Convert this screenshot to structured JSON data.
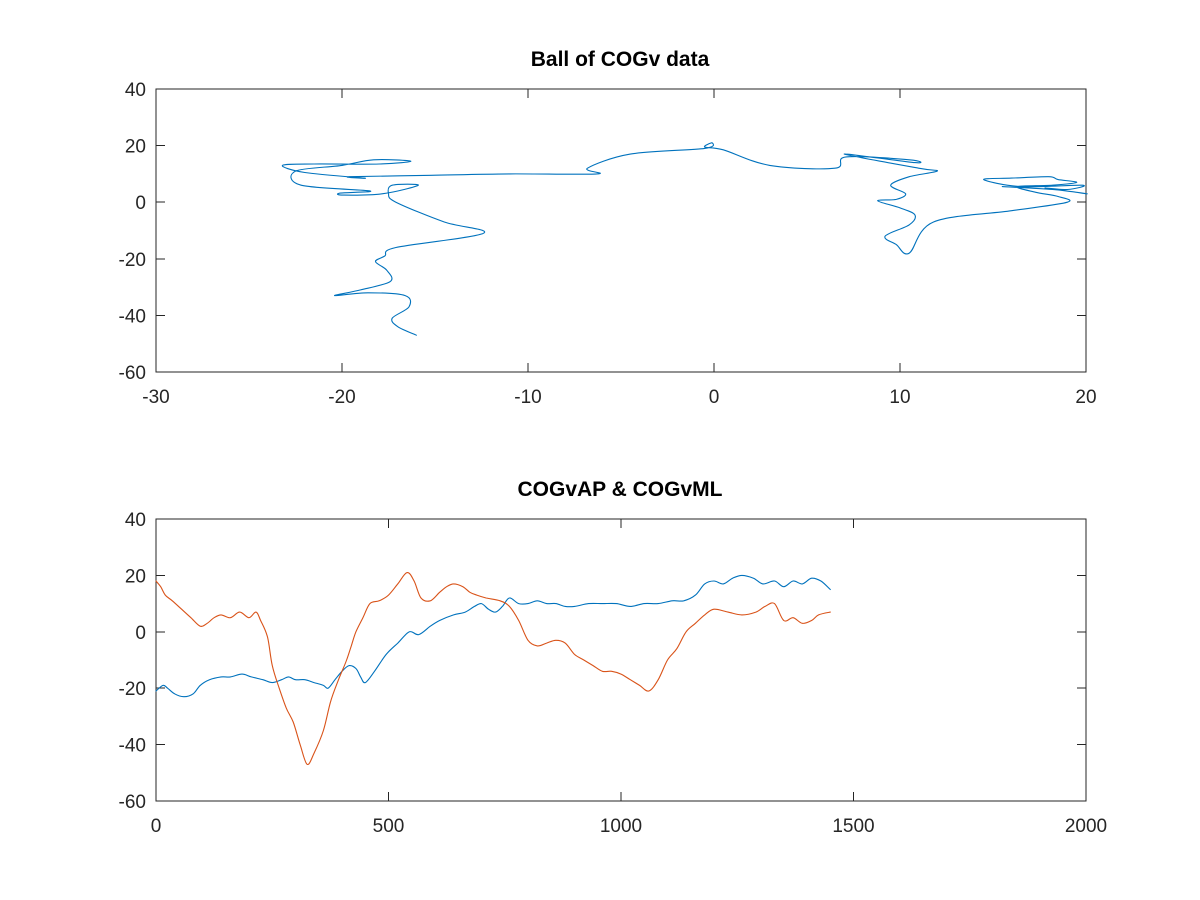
{
  "chart_data": [
    {
      "type": "line",
      "title": "Ball of COGv data",
      "xlabel": "",
      "ylabel": "",
      "xlim": [
        -30,
        20
      ],
      "ylim": [
        -60,
        40
      ],
      "x_ticks": [
        -30,
        -20,
        -10,
        0,
        10,
        20
      ],
      "y_ticks": [
        -60,
        -40,
        -20,
        0,
        20,
        40
      ],
      "x_tick_labels": [
        "-30",
        "-20",
        "-10",
        "0",
        "10",
        "20"
      ],
      "y_tick_labels": [
        "-60",
        "-40",
        "-20",
        "0",
        "20",
        "40"
      ],
      "grid": false,
      "series": [
        {
          "color": "#0072bd",
          "x": [
            -16.0,
            -17.0,
            -17.3,
            -16.4,
            -16.6,
            -18.6,
            -20.4,
            -19.0,
            -17.4,
            -17.6,
            -18.2,
            -17.7,
            -17.1,
            -12.4,
            -14.5,
            -17.1,
            -17.5,
            -17.3,
            -15.9,
            -17.8,
            -19.9,
            -20.1,
            -18.5,
            -22.2,
            -22.5,
            -20.0,
            -18.3,
            -16.3,
            -18.0,
            -21.5,
            -23.2,
            -22.0,
            -18.8,
            -19.6,
            -15.2,
            -11.0,
            -6.3,
            -6.8,
            -4.5,
            -0.5,
            -0.1,
            -0.5,
            0.5,
            3.0,
            6.5,
            7.1,
            10.5,
            10.8,
            7.0,
            11.0,
            12.0,
            10.5,
            9.5,
            10.3,
            9.8,
            8.8,
            10.0,
            10.8,
            10.5,
            9.2,
            9.8,
            10.5,
            11.8,
            16.0,
            19.0,
            18.5,
            17.3,
            16.3,
            18.2,
            19.5,
            18.5,
            18.0,
            16.0,
            14.5,
            16.5,
            19.8,
            19.0,
            17.8,
            19.5,
            20.0,
            18.2,
            15.5
          ],
          "y": [
            -47.0,
            -44.0,
            -41.0,
            -37.0,
            -33.0,
            -32.0,
            -33.0,
            -31.0,
            -28.0,
            -24.0,
            -21.0,
            -19.0,
            -16.0,
            -11.0,
            -7.0,
            0.0,
            3.0,
            6.0,
            6.0,
            3.0,
            2.5,
            3.2,
            4.0,
            6.0,
            11.0,
            13.0,
            15.0,
            14.5,
            13.5,
            13.5,
            13.0,
            10.5,
            8.5,
            9.0,
            9.5,
            10.0,
            10.0,
            12.0,
            17.0,
            19.0,
            21.0,
            19.5,
            18.5,
            13.0,
            12.0,
            16.0,
            15.0,
            14.0,
            17.0,
            12.0,
            11.0,
            9.0,
            6.0,
            3.0,
            1.0,
            0.5,
            -2.0,
            -4.5,
            -8.0,
            -12.0,
            -15.0,
            -18.0,
            -7.0,
            -3.0,
            0.0,
            2.0,
            3.5,
            5.5,
            6.0,
            7.0,
            8.0,
            9.0,
            8.5,
            8.0,
            5.5,
            6.0,
            4.5,
            5.0,
            3.5,
            3.0,
            4.5,
            5.5
          ]
        }
      ]
    },
    {
      "type": "line",
      "title": "COGvAP & COGvML",
      "xlabel": "",
      "ylabel": "",
      "xlim": [
        0,
        2000
      ],
      "ylim": [
        -60,
        40
      ],
      "x_ticks": [
        0,
        500,
        1000,
        1500,
        2000
      ],
      "y_ticks": [
        -60,
        -40,
        -20,
        0,
        20,
        40
      ],
      "x_tick_labels": [
        "0",
        "500",
        "1000",
        "1500",
        "2000"
      ],
      "y_tick_labels": [
        "-60",
        "-40",
        "-20",
        "0",
        "20",
        "40"
      ],
      "grid": false,
      "series": [
        {
          "color": "#0072bd",
          "x": [
            0,
            15,
            25,
            40,
            60,
            80,
            95,
            115,
            140,
            160,
            185,
            205,
            230,
            250,
            270,
            285,
            300,
            320,
            340,
            360,
            370,
            385,
            400,
            415,
            430,
            440,
            450,
            470,
            495,
            520,
            545,
            565,
            590,
            610,
            640,
            665,
            685,
            700,
            715,
            730,
            745,
            760,
            780,
            800,
            820,
            840,
            860,
            880,
            900,
            930,
            960,
            990,
            1020,
            1050,
            1080,
            1110,
            1135,
            1160,
            1180,
            1200,
            1220,
            1240,
            1260,
            1285,
            1305,
            1330,
            1350,
            1370,
            1390,
            1410,
            1430,
            1450
          ],
          "y": [
            -21,
            -19,
            -20,
            -22,
            -23,
            -22,
            -19,
            -17,
            -16,
            -16,
            -15,
            -16,
            -17,
            -18,
            -17,
            -16,
            -17,
            -17,
            -18,
            -19,
            -20,
            -17,
            -14,
            -12,
            -13,
            -16,
            -18,
            -14,
            -8,
            -4,
            0,
            -1,
            2,
            4,
            6,
            7,
            9,
            10,
            8,
            7,
            9,
            12,
            10,
            10,
            11,
            10,
            10,
            9,
            9,
            10,
            10,
            10,
            9,
            10,
            10,
            11,
            11,
            13,
            17,
            18,
            17,
            19,
            20,
            19,
            17,
            18,
            16,
            18,
            17,
            19,
            18,
            15
          ]
        },
        {
          "color": "#d95319",
          "x": [
            0,
            10,
            20,
            35,
            55,
            75,
            95,
            110,
            125,
            140,
            160,
            180,
            200,
            215,
            225,
            240,
            250,
            265,
            280,
            295,
            310,
            325,
            340,
            360,
            375,
            390,
            400,
            410,
            420,
            430,
            445,
            460,
            480,
            500,
            520,
            540,
            555,
            570,
            590,
            610,
            625,
            640,
            660,
            675,
            690,
            710,
            740,
            760,
            780,
            800,
            820,
            840,
            860,
            880,
            900,
            920,
            940,
            960,
            980,
            1000,
            1020,
            1040,
            1060,
            1080,
            1100,
            1120,
            1140,
            1160,
            1180,
            1200,
            1230,
            1260,
            1290,
            1310,
            1330,
            1350,
            1370,
            1390,
            1410,
            1425,
            1450
          ],
          "y": [
            18,
            16,
            13,
            11,
            8,
            5,
            2,
            3,
            5,
            6,
            5,
            7,
            5,
            7,
            4,
            -2,
            -12,
            -20,
            -27,
            -32,
            -40,
            -47,
            -43,
            -35,
            -25,
            -18,
            -14,
            -10,
            -5,
            0,
            5,
            10,
            11,
            13,
            17,
            21,
            18,
            12,
            11,
            14,
            16,
            17,
            16,
            14,
            13,
            12,
            11,
            9,
            4,
            -3,
            -5,
            -4,
            -3,
            -4,
            -8,
            -10,
            -12,
            -14,
            -14,
            -15,
            -17,
            -19,
            -21,
            -17,
            -10,
            -6,
            0,
            3,
            6,
            8,
            7,
            6,
            7,
            9,
            10,
            4,
            5,
            3,
            4,
            6,
            7
          ]
        }
      ]
    }
  ]
}
